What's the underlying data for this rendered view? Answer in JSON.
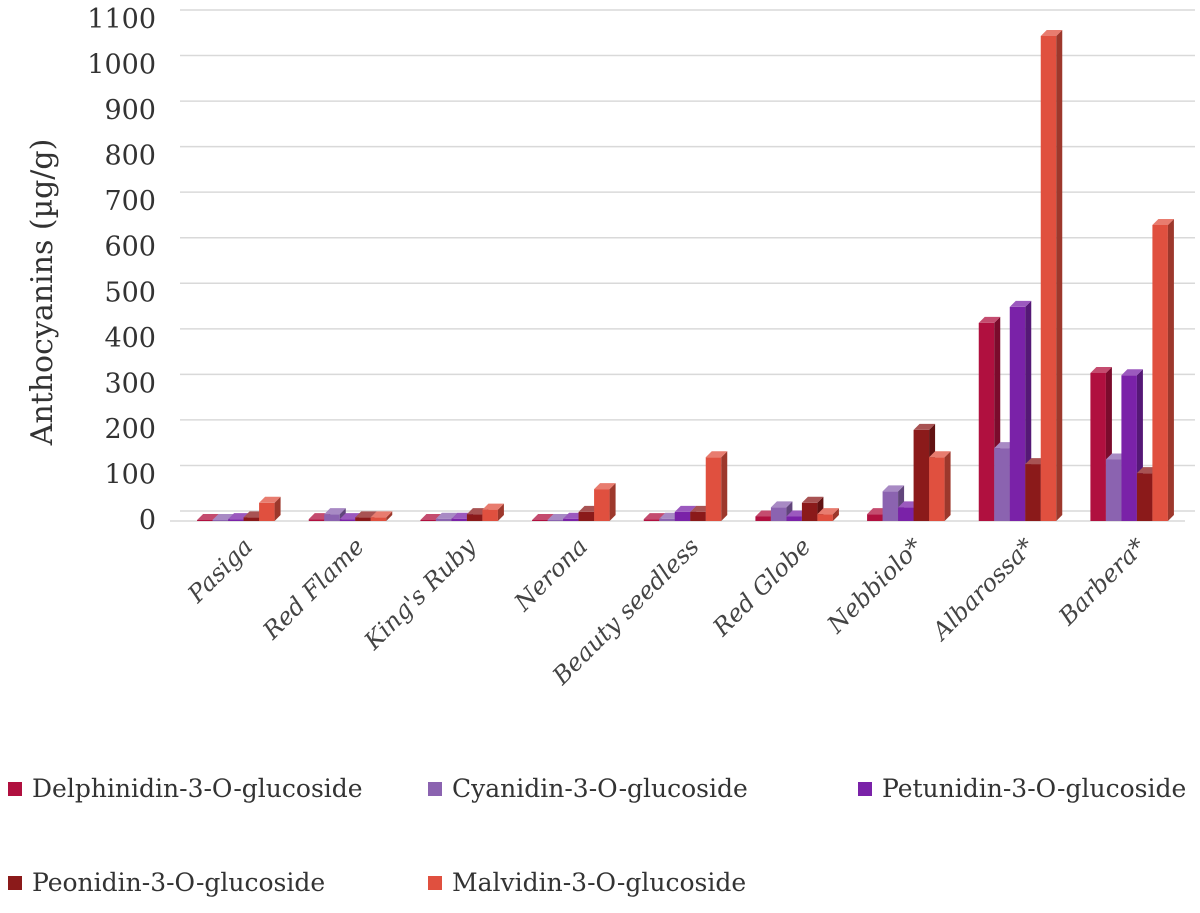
{
  "chart_data": {
    "type": "bar",
    "title": "",
    "xlabel": "",
    "ylabel": "Anthocyanins (µg/g)",
    "ylim": [
      0,
      1100
    ],
    "yticks": [
      0,
      100,
      200,
      300,
      400,
      500,
      600,
      700,
      800,
      900,
      1000,
      1100
    ],
    "grid": true,
    "legend_position": "bottom",
    "categories": [
      "Pasiga",
      "Red Flame",
      "King's Ruby",
      "Nerona",
      "Beauty seedless",
      "Red Globe",
      "Nebbiolo*",
      "Albarossa*",
      "Barbera*"
    ],
    "series": [
      {
        "name": "Delphinidin-3-O-glucoside",
        "color": "#b0103f",
        "values": [
          2,
          4,
          2,
          2,
          4,
          10,
          15,
          435,
          325
        ]
      },
      {
        "name": "Cyanidin-3-O-glucoside",
        "color": "#8b63b0",
        "values": [
          2,
          15,
          5,
          2,
          5,
          30,
          65,
          160,
          135
        ]
      },
      {
        "name": "Petunidin-3-O-glucoside",
        "color": "#7a22a8",
        "values": [
          4,
          4,
          5,
          5,
          20,
          10,
          30,
          470,
          320
        ]
      },
      {
        "name": "Peonidin-3-O-glucoside",
        "color": "#8b1a1a",
        "values": [
          8,
          8,
          15,
          20,
          20,
          40,
          200,
          125,
          105
        ]
      },
      {
        "name": "Malvidin-3-O-glucoside",
        "color": "#e0503f",
        "values": [
          40,
          8,
          25,
          70,
          140,
          15,
          140,
          1065,
          650
        ]
      }
    ]
  }
}
